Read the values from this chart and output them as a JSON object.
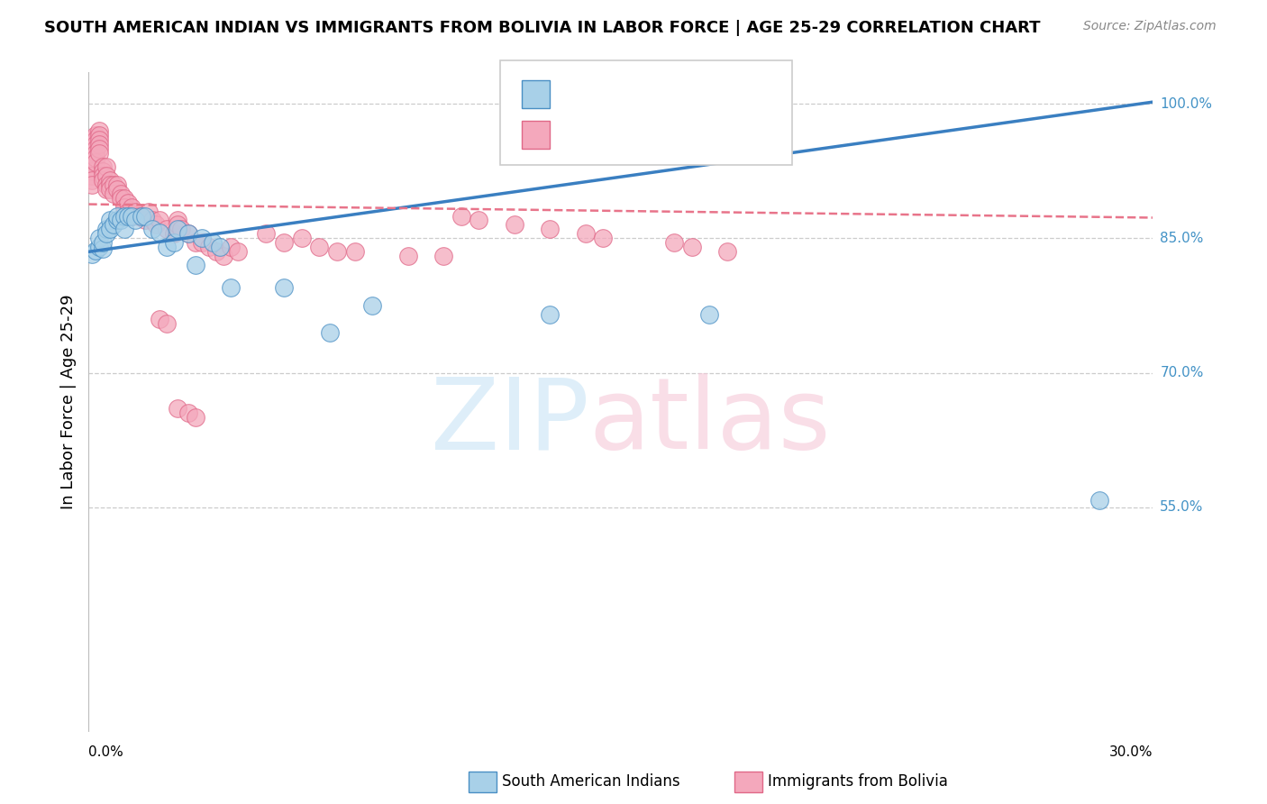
{
  "title": "SOUTH AMERICAN INDIAN VS IMMIGRANTS FROM BOLIVIA IN LABOR FORCE | AGE 25-29 CORRELATION CHART",
  "source": "Source: ZipAtlas.com",
  "ylabel_label": "In Labor Force | Age 25-29",
  "xmin": 0.0,
  "xmax": 0.3,
  "ymin": 0.3,
  "ymax": 1.035,
  "color_blue": "#a8d0e8",
  "color_pink": "#f4a8bc",
  "color_blue_line": "#3a7fc1",
  "color_pink_line": "#e8748a",
  "blue_x": [
    0.001,
    0.002,
    0.003,
    0.003,
    0.004,
    0.004,
    0.005,
    0.005,
    0.006,
    0.006,
    0.007,
    0.008,
    0.008,
    0.009,
    0.01,
    0.01,
    0.011,
    0.012,
    0.013,
    0.015,
    0.016,
    0.018,
    0.02,
    0.022,
    0.024,
    0.025,
    0.028,
    0.03,
    0.032,
    0.035,
    0.037,
    0.04,
    0.055,
    0.068,
    0.08,
    0.13,
    0.175,
    0.285
  ],
  "blue_y": [
    0.832,
    0.836,
    0.84,
    0.85,
    0.838,
    0.845,
    0.86,
    0.855,
    0.87,
    0.86,
    0.865,
    0.87,
    0.875,
    0.87,
    0.875,
    0.86,
    0.875,
    0.875,
    0.87,
    0.875,
    0.875,
    0.86,
    0.856,
    0.84,
    0.845,
    0.86,
    0.855,
    0.82,
    0.85,
    0.845,
    0.84,
    0.795,
    0.795,
    0.745,
    0.775,
    0.765,
    0.765,
    0.558
  ],
  "pink_x": [
    0.001,
    0.001,
    0.001,
    0.001,
    0.001,
    0.001,
    0.001,
    0.001,
    0.001,
    0.001,
    0.001,
    0.002,
    0.002,
    0.002,
    0.002,
    0.002,
    0.002,
    0.002,
    0.003,
    0.003,
    0.003,
    0.003,
    0.003,
    0.003,
    0.004,
    0.004,
    0.004,
    0.004,
    0.005,
    0.005,
    0.005,
    0.005,
    0.006,
    0.006,
    0.006,
    0.007,
    0.007,
    0.008,
    0.008,
    0.009,
    0.009,
    0.01,
    0.01,
    0.011,
    0.011,
    0.012,
    0.012,
    0.013,
    0.014,
    0.015,
    0.016,
    0.017,
    0.018,
    0.019,
    0.02,
    0.022,
    0.024,
    0.025,
    0.025,
    0.026,
    0.028,
    0.03,
    0.032,
    0.034,
    0.036,
    0.038,
    0.04,
    0.042,
    0.05,
    0.055,
    0.06,
    0.065,
    0.07,
    0.075,
    0.09,
    0.1,
    0.105,
    0.11,
    0.12,
    0.13,
    0.14,
    0.145,
    0.165,
    0.17,
    0.18,
    0.02,
    0.022,
    0.025,
    0.028,
    0.03
  ],
  "pink_y": [
    0.96,
    0.955,
    0.95,
    0.945,
    0.94,
    0.935,
    0.93,
    0.925,
    0.92,
    0.915,
    0.91,
    0.965,
    0.96,
    0.955,
    0.95,
    0.945,
    0.94,
    0.935,
    0.97,
    0.965,
    0.96,
    0.955,
    0.95,
    0.945,
    0.93,
    0.925,
    0.92,
    0.915,
    0.93,
    0.92,
    0.91,
    0.905,
    0.915,
    0.91,
    0.905,
    0.91,
    0.9,
    0.91,
    0.905,
    0.9,
    0.895,
    0.895,
    0.885,
    0.89,
    0.88,
    0.885,
    0.875,
    0.88,
    0.875,
    0.875,
    0.87,
    0.88,
    0.87,
    0.865,
    0.87,
    0.86,
    0.855,
    0.87,
    0.865,
    0.86,
    0.855,
    0.845,
    0.845,
    0.84,
    0.835,
    0.83,
    0.84,
    0.835,
    0.855,
    0.845,
    0.85,
    0.84,
    0.835,
    0.835,
    0.83,
    0.83,
    0.875,
    0.87,
    0.865,
    0.86,
    0.855,
    0.85,
    0.845,
    0.84,
    0.835,
    0.76,
    0.755,
    0.66,
    0.655,
    0.65
  ]
}
